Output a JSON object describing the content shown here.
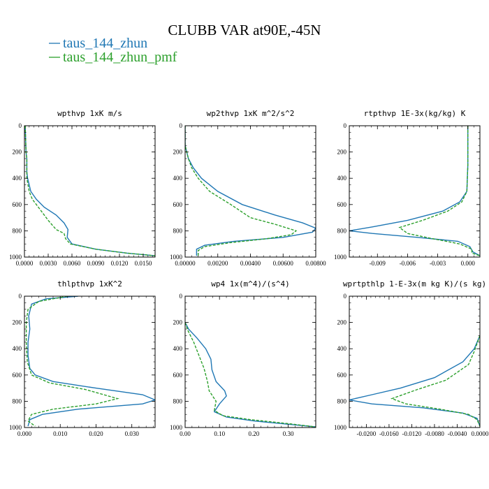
{
  "title": "CLUBB VAR at90E,-45N",
  "legend": [
    {
      "name": "taus_144_zhun",
      "color": "#1f77b4",
      "dash": "solid"
    },
    {
      "name": "taus_144_zhun_pmf",
      "color": "#2ca02c",
      "dash": "dashed"
    }
  ],
  "chart_data": [
    {
      "type": "line",
      "title": "wpthvp  1xK m/s",
      "xlim": [
        0,
        0.0165
      ],
      "ylim": [
        1000,
        0
      ],
      "xticks": [
        "0.0000",
        "0.0030",
        "0.0060",
        "0.0090",
        "0.0120",
        "0.0150"
      ],
      "xtick_values": [
        0,
        0.003,
        0.006,
        0.009,
        0.012,
        0.015
      ],
      "yticks": [
        "0",
        "200",
        "400",
        "600",
        "800",
        "1000"
      ],
      "ytick_values": [
        0,
        200,
        400,
        600,
        800,
        1000
      ],
      "series": [
        {
          "name": "taus_144_zhun",
          "points": [
            [
              0.0001,
              0
            ],
            [
              0.0002,
              200
            ],
            [
              0.0003,
              250
            ],
            [
              0.0003,
              350
            ],
            [
              0.0004,
              400
            ],
            [
              0.0008,
              500
            ],
            [
              0.0015,
              560
            ],
            [
              0.0025,
              620
            ],
            [
              0.004,
              680
            ],
            [
              0.005,
              740
            ],
            [
              0.0055,
              790
            ],
            [
              0.0054,
              850
            ],
            [
              0.006,
              900
            ],
            [
              0.009,
              940
            ],
            [
              0.013,
              970
            ],
            [
              0.0165,
              990
            ]
          ]
        },
        {
          "name": "taus_144_zhun_pmf",
          "points": [
            [
              0.0001,
              0
            ],
            [
              0.0002,
              200
            ],
            [
              0.0003,
              250
            ],
            [
              0.0003,
              350
            ],
            [
              0.0003,
              400
            ],
            [
              0.0006,
              500
            ],
            [
              0.001,
              560
            ],
            [
              0.002,
              640
            ],
            [
              0.003,
              720
            ],
            [
              0.004,
              790
            ],
            [
              0.005,
              820
            ],
            [
              0.0052,
              860
            ],
            [
              0.0058,
              900
            ],
            [
              0.009,
              940
            ],
            [
              0.013,
              970
            ],
            [
              0.0165,
              990
            ]
          ]
        }
      ]
    },
    {
      "type": "line",
      "title": "wp2thvp  1xK m^2/s^2",
      "xlim": [
        0,
        0.008
      ],
      "ylim": [
        1000,
        0
      ],
      "xticks": [
        "0.00000",
        "0.00200",
        "0.00400",
        "0.00600",
        "0.00800"
      ],
      "xtick_values": [
        0,
        0.002,
        0.004,
        0.006,
        0.008
      ],
      "yticks": [
        "0",
        "200",
        "400",
        "600",
        "800",
        "1000"
      ],
      "ytick_values": [
        0,
        200,
        400,
        600,
        800,
        1000
      ],
      "series": [
        {
          "name": "taus_144_zhun",
          "points": [
            [
              0,
              0
            ],
            [
              0,
              150
            ],
            [
              0.0001,
              200
            ],
            [
              0.0002,
              250
            ],
            [
              0.0005,
              320
            ],
            [
              0.001,
              400
            ],
            [
              0.002,
              500
            ],
            [
              0.0035,
              600
            ],
            [
              0.0055,
              680
            ],
            [
              0.0072,
              740
            ],
            [
              0.008,
              780
            ],
            [
              0.0078,
              810
            ],
            [
              0.006,
              850
            ],
            [
              0.003,
              880
            ],
            [
              0.0012,
              910
            ],
            [
              0.0007,
              940
            ],
            [
              0.0007,
              990
            ]
          ]
        },
        {
          "name": "taus_144_zhun_pmf",
          "points": [
            [
              0,
              0
            ],
            [
              0,
              150
            ],
            [
              0.0001,
              200
            ],
            [
              0.0002,
              250
            ],
            [
              0.0004,
              320
            ],
            [
              0.0008,
              400
            ],
            [
              0.0015,
              500
            ],
            [
              0.0028,
              600
            ],
            [
              0.004,
              700
            ],
            [
              0.0055,
              750
            ],
            [
              0.0068,
              800
            ],
            [
              0.0065,
              830
            ],
            [
              0.005,
              860
            ],
            [
              0.0028,
              890
            ],
            [
              0.0012,
              920
            ],
            [
              0.0008,
              950
            ],
            [
              0.0008,
              990
            ]
          ]
        }
      ]
    },
    {
      "type": "line",
      "title": "rtpthvp  1E-3x(kg/kg) K",
      "xlim": [
        -0.0118,
        0.0012
      ],
      "ylim": [
        1000,
        0
      ],
      "xticks": [
        "-0.009",
        "-0.006",
        "-0.003",
        "0.000"
      ],
      "xtick_values": [
        -0.009,
        -0.006,
        -0.003,
        0
      ],
      "yticks": [
        "0",
        "200",
        "400",
        "600",
        "800",
        "1000"
      ],
      "ytick_values": [
        0,
        200,
        400,
        600,
        800,
        1000
      ],
      "series": [
        {
          "name": "taus_144_zhun",
          "points": [
            [
              0,
              0
            ],
            [
              0,
              300
            ],
            [
              -0.0001,
              500
            ],
            [
              -0.0008,
              580
            ],
            [
              -0.0025,
              650
            ],
            [
              -0.006,
              720
            ],
            [
              -0.0095,
              770
            ],
            [
              -0.0118,
              800
            ],
            [
              -0.0095,
              820
            ],
            [
              -0.005,
              850
            ],
            [
              -0.001,
              880
            ],
            [
              0.0002,
              920
            ],
            [
              0.0005,
              960
            ],
            [
              0.0012,
              990
            ]
          ]
        },
        {
          "name": "taus_144_zhun_pmf",
          "points": [
            [
              0,
              0
            ],
            [
              0,
              300
            ],
            [
              -0.0001,
              500
            ],
            [
              -0.0006,
              580
            ],
            [
              -0.002,
              650
            ],
            [
              -0.0045,
              720
            ],
            [
              -0.0068,
              775
            ],
            [
              -0.006,
              820
            ],
            [
              -0.0035,
              860
            ],
            [
              -0.0008,
              900
            ],
            [
              0.0004,
              940
            ],
            [
              0.0004,
              970
            ],
            [
              0.0012,
              990
            ]
          ]
        }
      ]
    },
    {
      "type": "line",
      "title": "thlpthvp  1xK^2",
      "xlim": [
        0,
        0.0365
      ],
      "ylim": [
        1000,
        0
      ],
      "xticks": [
        "0.000",
        "0.010",
        "0.020",
        "0.030"
      ],
      "xtick_values": [
        0,
        0.01,
        0.02,
        0.03
      ],
      "yticks": [
        "0",
        "200",
        "400",
        "600",
        "800",
        "1000"
      ],
      "ytick_values": [
        0,
        200,
        400,
        600,
        800,
        1000
      ],
      "series": [
        {
          "name": "taus_144_zhun",
          "points": [
            [
              0.015,
              0
            ],
            [
              0.006,
              20
            ],
            [
              0.002,
              60
            ],
            [
              0.0012,
              150
            ],
            [
              0.0015,
              250
            ],
            [
              0.001,
              350
            ],
            [
              0.001,
              450
            ],
            [
              0.0015,
              550
            ],
            [
              0.003,
              600
            ],
            [
              0.008,
              650
            ],
            [
              0.02,
              700
            ],
            [
              0.033,
              750
            ],
            [
              0.0365,
              790
            ],
            [
              0.033,
              820
            ],
            [
              0.015,
              860
            ],
            [
              0.005,
              900
            ],
            [
              0.0015,
              940
            ],
            [
              0.001,
              990
            ]
          ]
        },
        {
          "name": "taus_144_zhun_pmf",
          "points": [
            [
              0.012,
              0
            ],
            [
              0.004,
              40
            ],
            [
              0.001,
              100
            ],
            [
              0.0005,
              200
            ],
            [
              0.0005,
              350
            ],
            [
              0.0008,
              500
            ],
            [
              0.002,
              600
            ],
            [
              0.007,
              660
            ],
            [
              0.017,
              710
            ],
            [
              0.026,
              780
            ],
            [
              0.02,
              820
            ],
            [
              0.008,
              860
            ],
            [
              0.002,
              900
            ],
            [
              0.001,
              950
            ],
            [
              0.003,
              990
            ]
          ]
        }
      ]
    },
    {
      "type": "line",
      "title": "wp4  1x(m^4)/(s^4)",
      "xlim": [
        0,
        0.38
      ],
      "ylim": [
        1000,
        0
      ],
      "xticks": [
        "0.00",
        "0.10",
        "0.20",
        "0.30"
      ],
      "xtick_values": [
        0,
        0.1,
        0.2,
        0.3
      ],
      "yticks": [
        "0",
        "200",
        "400",
        "600",
        "800",
        "1000"
      ],
      "ytick_values": [
        0,
        200,
        400,
        600,
        800,
        1000
      ],
      "series": [
        {
          "name": "taus_144_zhun",
          "points": [
            [
              0,
              200
            ],
            [
              0.01,
              250
            ],
            [
              0.035,
              320
            ],
            [
              0.06,
              400
            ],
            [
              0.075,
              480
            ],
            [
              0.078,
              560
            ],
            [
              0.09,
              650
            ],
            [
              0.115,
              720
            ],
            [
              0.12,
              760
            ],
            [
              0.1,
              820
            ],
            [
              0.085,
              880
            ],
            [
              0.12,
              920
            ],
            [
              0.2,
              950
            ],
            [
              0.3,
              975
            ],
            [
              0.38,
              995
            ]
          ]
        },
        {
          "name": "taus_144_zhun_pmf",
          "points": [
            [
              0,
              200
            ],
            [
              0.008,
              260
            ],
            [
              0.025,
              350
            ],
            [
              0.04,
              450
            ],
            [
              0.055,
              550
            ],
            [
              0.065,
              650
            ],
            [
              0.07,
              720
            ],
            [
              0.09,
              800
            ],
            [
              0.085,
              870
            ],
            [
              0.11,
              910
            ],
            [
              0.19,
              940
            ],
            [
              0.3,
              970
            ],
            [
              0.38,
              995
            ]
          ]
        }
      ]
    },
    {
      "type": "line",
      "title": "wprtpthlp  1-E-3x(m kg K)/(s kg)",
      "xlim": [
        -0.023,
        0
      ],
      "ylim": [
        1000,
        0
      ],
      "xticks": [
        "-0.0200",
        "-0.0160",
        "-0.0120",
        "-0.0080",
        "-0.0040",
        "0.0000"
      ],
      "xtick_values": [
        -0.02,
        -0.016,
        -0.012,
        -0.008,
        -0.004,
        0
      ],
      "yticks": [
        "0",
        "200",
        "400",
        "600",
        "800",
        "1000"
      ],
      "ytick_values": [
        0,
        200,
        400,
        600,
        800,
        1000
      ],
      "series": [
        {
          "name": "taus_144_zhun",
          "points": [
            [
              0,
              300
            ],
            [
              -0.001,
              400
            ],
            [
              -0.003,
              500
            ],
            [
              -0.008,
              620
            ],
            [
              -0.014,
              700
            ],
            [
              -0.019,
              750
            ],
            [
              -0.023,
              790
            ],
            [
              -0.019,
              820
            ],
            [
              -0.01,
              850
            ],
            [
              -0.003,
              890
            ],
            [
              -0.0005,
              930
            ],
            [
              0,
              990
            ]
          ]
        },
        {
          "name": "taus_144_zhun_pmf",
          "points": [
            [
              0,
              300
            ],
            [
              -0.001,
              420
            ],
            [
              -0.002,
              520
            ],
            [
              -0.006,
              640
            ],
            [
              -0.011,
              710
            ],
            [
              -0.0155,
              780
            ],
            [
              -0.013,
              820
            ],
            [
              -0.007,
              860
            ],
            [
              -0.002,
              900
            ],
            [
              -0.0005,
              940
            ],
            [
              0,
              990
            ]
          ]
        }
      ]
    }
  ]
}
